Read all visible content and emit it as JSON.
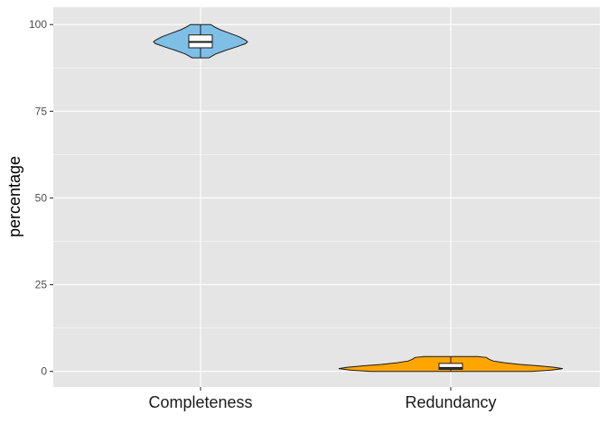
{
  "chart_data": {
    "type": "violin",
    "title": "",
    "xlabel": "",
    "ylabel": "percentage",
    "ylim": [
      -4.5,
      105
    ],
    "yticks": [
      0,
      25,
      50,
      75,
      100
    ],
    "categories": [
      "Completeness",
      "Redundancy"
    ],
    "grid": true,
    "legend": "none",
    "panel_color": "#e5e5e5",
    "gridline_color": "#ffffff",
    "series": [
      {
        "category": "Completeness",
        "fill": "#7fbfe6",
        "y_min": 90.4,
        "y_max": 100,
        "box": {
          "q1": 93.3,
          "median": 95.0,
          "q3": 97.0,
          "whisker_low": 90.4,
          "whisker_high": 100
        },
        "density": [
          [
            90.4,
            0.18
          ],
          [
            91.5,
            0.32
          ],
          [
            92.5,
            0.52
          ],
          [
            93.5,
            0.75
          ],
          [
            94.5,
            0.96
          ],
          [
            95.0,
            1.0
          ],
          [
            95.5,
            0.96
          ],
          [
            96.5,
            0.82
          ],
          [
            97.5,
            0.62
          ],
          [
            98.5,
            0.42
          ],
          [
            99.3,
            0.3
          ],
          [
            100,
            0.22
          ]
        ]
      },
      {
        "category": "Redundancy",
        "fill": "#ffa500",
        "y_min": 0,
        "y_max": 4.3,
        "box": {
          "q1": 0.6,
          "median": 1.0,
          "q3": 2.3,
          "whisker_low": 0,
          "whisker_high": 4.3
        },
        "density": [
          [
            0.0,
            0.72
          ],
          [
            0.4,
            0.9
          ],
          [
            0.8,
            1.0
          ],
          [
            1.2,
            0.92
          ],
          [
            1.6,
            0.78
          ],
          [
            2.0,
            0.62
          ],
          [
            2.5,
            0.48
          ],
          [
            3.0,
            0.38
          ],
          [
            3.5,
            0.34
          ],
          [
            4.0,
            0.32
          ],
          [
            4.3,
            0.24
          ]
        ]
      }
    ]
  }
}
